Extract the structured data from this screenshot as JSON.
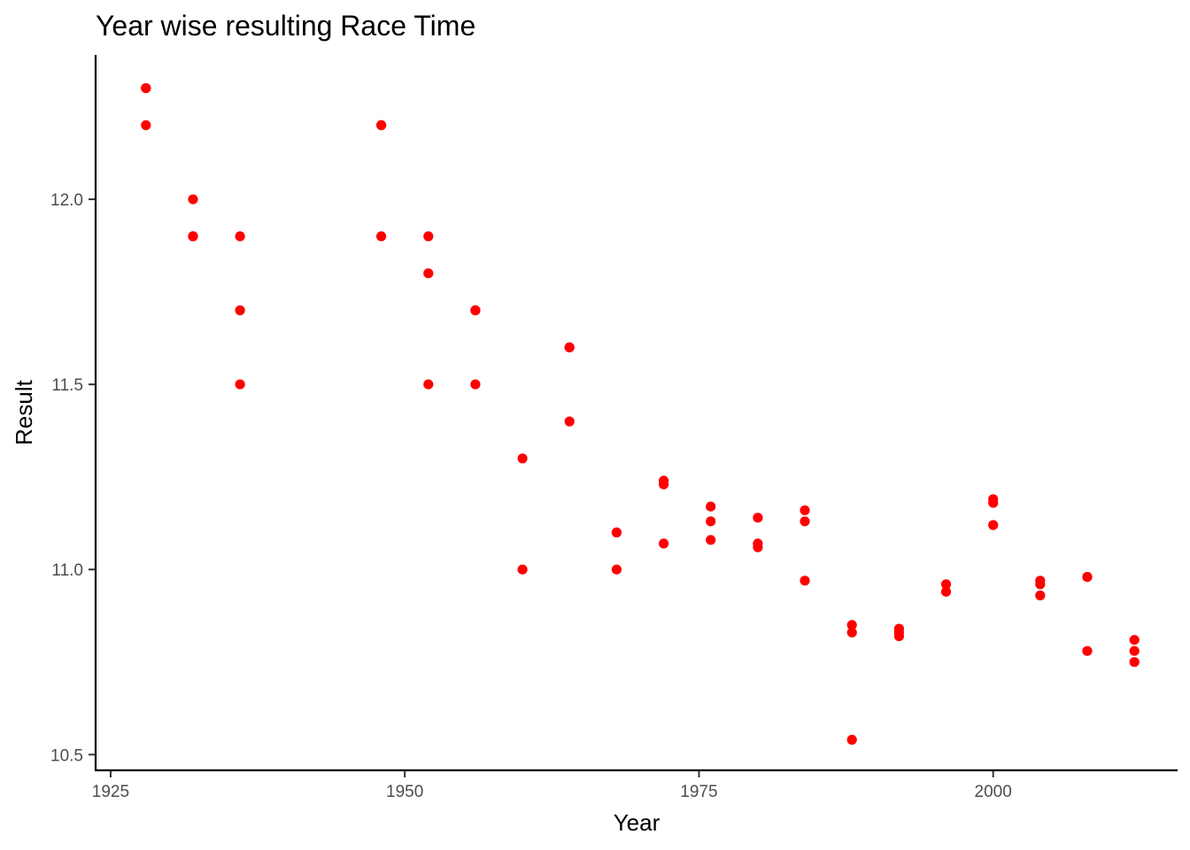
{
  "chart_data": {
    "type": "scatter",
    "title": "Year wise resulting Race Time",
    "xlabel": "Year",
    "ylabel": "Result",
    "xlim": [
      1923.8,
      2015.6
    ],
    "ylim": [
      10.46,
      12.39
    ],
    "x_ticks": [
      1925,
      1950,
      1975,
      2000
    ],
    "y_ticks": [
      10.5,
      11.0,
      11.5,
      12.0
    ],
    "y_tick_labels": [
      "10.5",
      "11.0",
      "11.5",
      "12.0"
    ],
    "grid": false,
    "point_color": "#ff0000",
    "points": [
      {
        "x": 1928,
        "y": 12.3
      },
      {
        "x": 1928,
        "y": 12.3
      },
      {
        "x": 1928,
        "y": 12.2
      },
      {
        "x": 1932,
        "y": 12.0
      },
      {
        "x": 1932,
        "y": 11.9
      },
      {
        "x": 1932,
        "y": 11.9
      },
      {
        "x": 1936,
        "y": 11.9
      },
      {
        "x": 1936,
        "y": 11.7
      },
      {
        "x": 1936,
        "y": 11.5
      },
      {
        "x": 1948,
        "y": 12.2
      },
      {
        "x": 1948,
        "y": 12.2
      },
      {
        "x": 1948,
        "y": 11.9
      },
      {
        "x": 1952,
        "y": 11.9
      },
      {
        "x": 1952,
        "y": 11.8
      },
      {
        "x": 1952,
        "y": 11.5
      },
      {
        "x": 1956,
        "y": 11.7
      },
      {
        "x": 1956,
        "y": 11.7
      },
      {
        "x": 1956,
        "y": 11.5
      },
      {
        "x": 1960,
        "y": 11.3
      },
      {
        "x": 1960,
        "y": 11.0
      },
      {
        "x": 1964,
        "y": 11.6
      },
      {
        "x": 1964,
        "y": 11.6
      },
      {
        "x": 1964,
        "y": 11.4
      },
      {
        "x": 1968,
        "y": 11.1
      },
      {
        "x": 1968,
        "y": 11.1
      },
      {
        "x": 1968,
        "y": 11.0
      },
      {
        "x": 1972,
        "y": 11.24
      },
      {
        "x": 1972,
        "y": 11.23
      },
      {
        "x": 1972,
        "y": 11.07
      },
      {
        "x": 1976,
        "y": 11.17
      },
      {
        "x": 1976,
        "y": 11.13
      },
      {
        "x": 1976,
        "y": 11.08
      },
      {
        "x": 1980,
        "y": 11.14
      },
      {
        "x": 1980,
        "y": 11.07
      },
      {
        "x": 1980,
        "y": 11.06
      },
      {
        "x": 1984,
        "y": 11.16
      },
      {
        "x": 1984,
        "y": 11.13
      },
      {
        "x": 1984,
        "y": 10.97
      },
      {
        "x": 1988,
        "y": 10.85
      },
      {
        "x": 1988,
        "y": 10.83
      },
      {
        "x": 1988,
        "y": 10.54
      },
      {
        "x": 1992,
        "y": 10.84
      },
      {
        "x": 1992,
        "y": 10.83
      },
      {
        "x": 1992,
        "y": 10.82
      },
      {
        "x": 1996,
        "y": 10.96
      },
      {
        "x": 1996,
        "y": 10.94
      },
      {
        "x": 2000,
        "y": 11.19
      },
      {
        "x": 2000,
        "y": 11.18
      },
      {
        "x": 2000,
        "y": 11.12
      },
      {
        "x": 2004,
        "y": 10.97
      },
      {
        "x": 2004,
        "y": 10.96
      },
      {
        "x": 2004,
        "y": 10.93
      },
      {
        "x": 2008,
        "y": 10.98
      },
      {
        "x": 2008,
        "y": 10.98
      },
      {
        "x": 2008,
        "y": 10.78
      },
      {
        "x": 2012,
        "y": 10.81
      },
      {
        "x": 2012,
        "y": 10.78
      },
      {
        "x": 2012,
        "y": 10.75
      }
    ]
  }
}
